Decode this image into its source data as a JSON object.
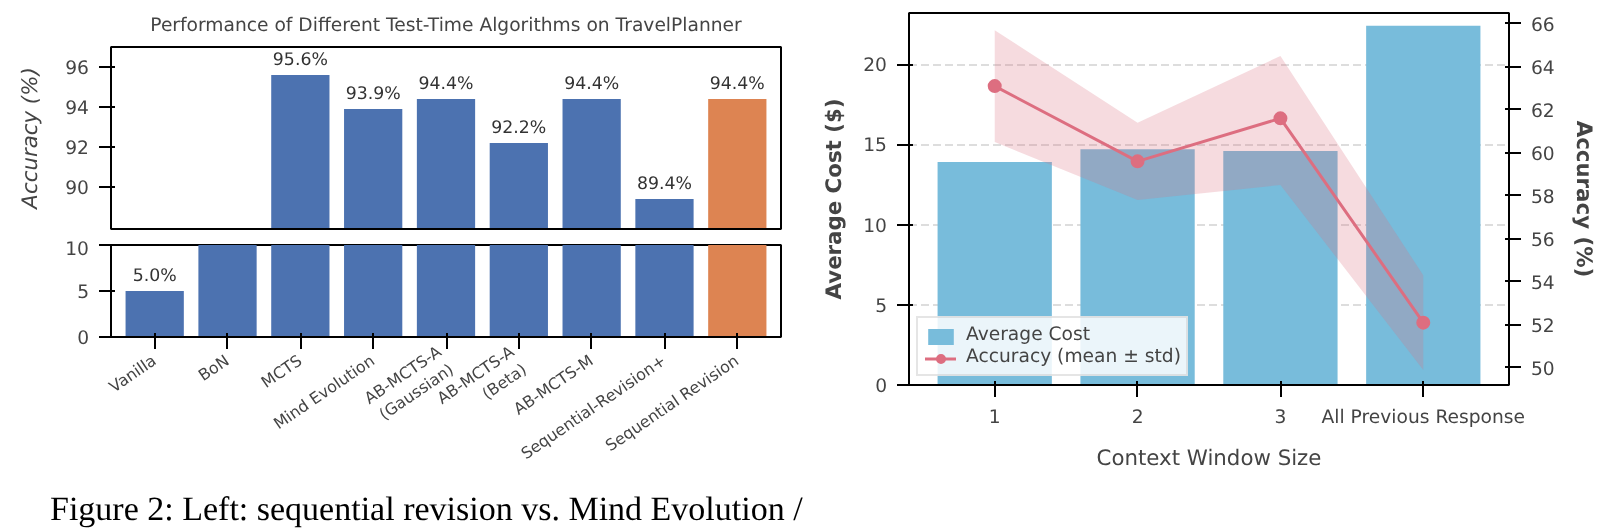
{
  "chart_data": [
    {
      "type": "bar",
      "title": "Performance of Different Test-Time Algorithms on TravelPlanner",
      "ylabel": "Accuracy (%)",
      "categories": [
        null,
        null,
        null,
        null,
        null,
        null,
        null,
        null,
        null
      ],
      "values": [
        null,
        null,
        95.6,
        93.9,
        94.4,
        92.2,
        94.4,
        89.4,
        94.4
      ],
      "colors": [
        "#4c72b0",
        "#4c72b0",
        "#4c72b0",
        "#4c72b0",
        "#4c72b0",
        "#4c72b0",
        "#4c72b0",
        "#4c72b0",
        "#dd8452"
      ],
      "value_labels": [
        null,
        null,
        "95.6%",
        "93.9%",
        "94.4%",
        "92.2%",
        "94.4%",
        "89.4%",
        "94.4%"
      ],
      "ylim": [
        87.9,
        97
      ],
      "yticks": [
        90,
        92,
        94,
        96
      ],
      "tick_labels": "y"
    },
    {
      "type": "bar",
      "categories": [
        "Vanilla",
        "BoN",
        "MCTS",
        "Mind Evolution",
        "AB-MCTS-A\n(Gaussian)",
        "AB-MCTS-A\n(Beta)",
        "AB-MCTS-M",
        "Sequential-Revision+",
        "Sequential Revision"
      ],
      "values": [
        5.0,
        10,
        10,
        10,
        10,
        10,
        10,
        10,
        10
      ],
      "colors": [
        "#4c72b0",
        "#4c72b0",
        "#4c72b0",
        "#4c72b0",
        "#4c72b0",
        "#4c72b0",
        "#4c72b0",
        "#4c72b0",
        "#dd8452"
      ],
      "value_labels": [
        "5.0%",
        null,
        null,
        null,
        null,
        null,
        null,
        null,
        null
      ],
      "ylim": [
        0,
        10
      ],
      "yticks": [
        0,
        5,
        10
      ]
    },
    {
      "type": "bar",
      "xlabel": "Context Window Size",
      "ylabel": "Average Cost ($)",
      "y2label": "Accuracy (%)",
      "categories": [
        "1",
        "2",
        "3",
        "All Previous Response"
      ],
      "series": [
        {
          "name": "Average Cost",
          "color": "#78bcdb",
          "values": [
            13.9,
            14.7,
            14.6,
            22.4
          ]
        },
        {
          "name": "Accuracy (mean ± std)",
          "type": "line",
          "axis": "y2",
          "color": "#dd6e80",
          "values": [
            63.1,
            59.6,
            61.6,
            52.1
          ],
          "lower": [
            60.5,
            57.8,
            58.5,
            49.9
          ],
          "upper": [
            65.7,
            61.4,
            64.5,
            54.3
          ]
        }
      ],
      "ylim": [
        0,
        23.2
      ],
      "yticks": [
        0,
        5,
        10,
        15,
        20
      ],
      "y2lim": [
        49.2,
        66.5
      ],
      "y2ticks": [
        50,
        52,
        54,
        56,
        58,
        60,
        62,
        64,
        66
      ],
      "grid": "y",
      "legend": "bottom left",
      "marker": "circle",
      "annotations": [
        "Figure 2: Left: sequential revision vs. Mind Evolution /"
      ]
    }
  ]
}
